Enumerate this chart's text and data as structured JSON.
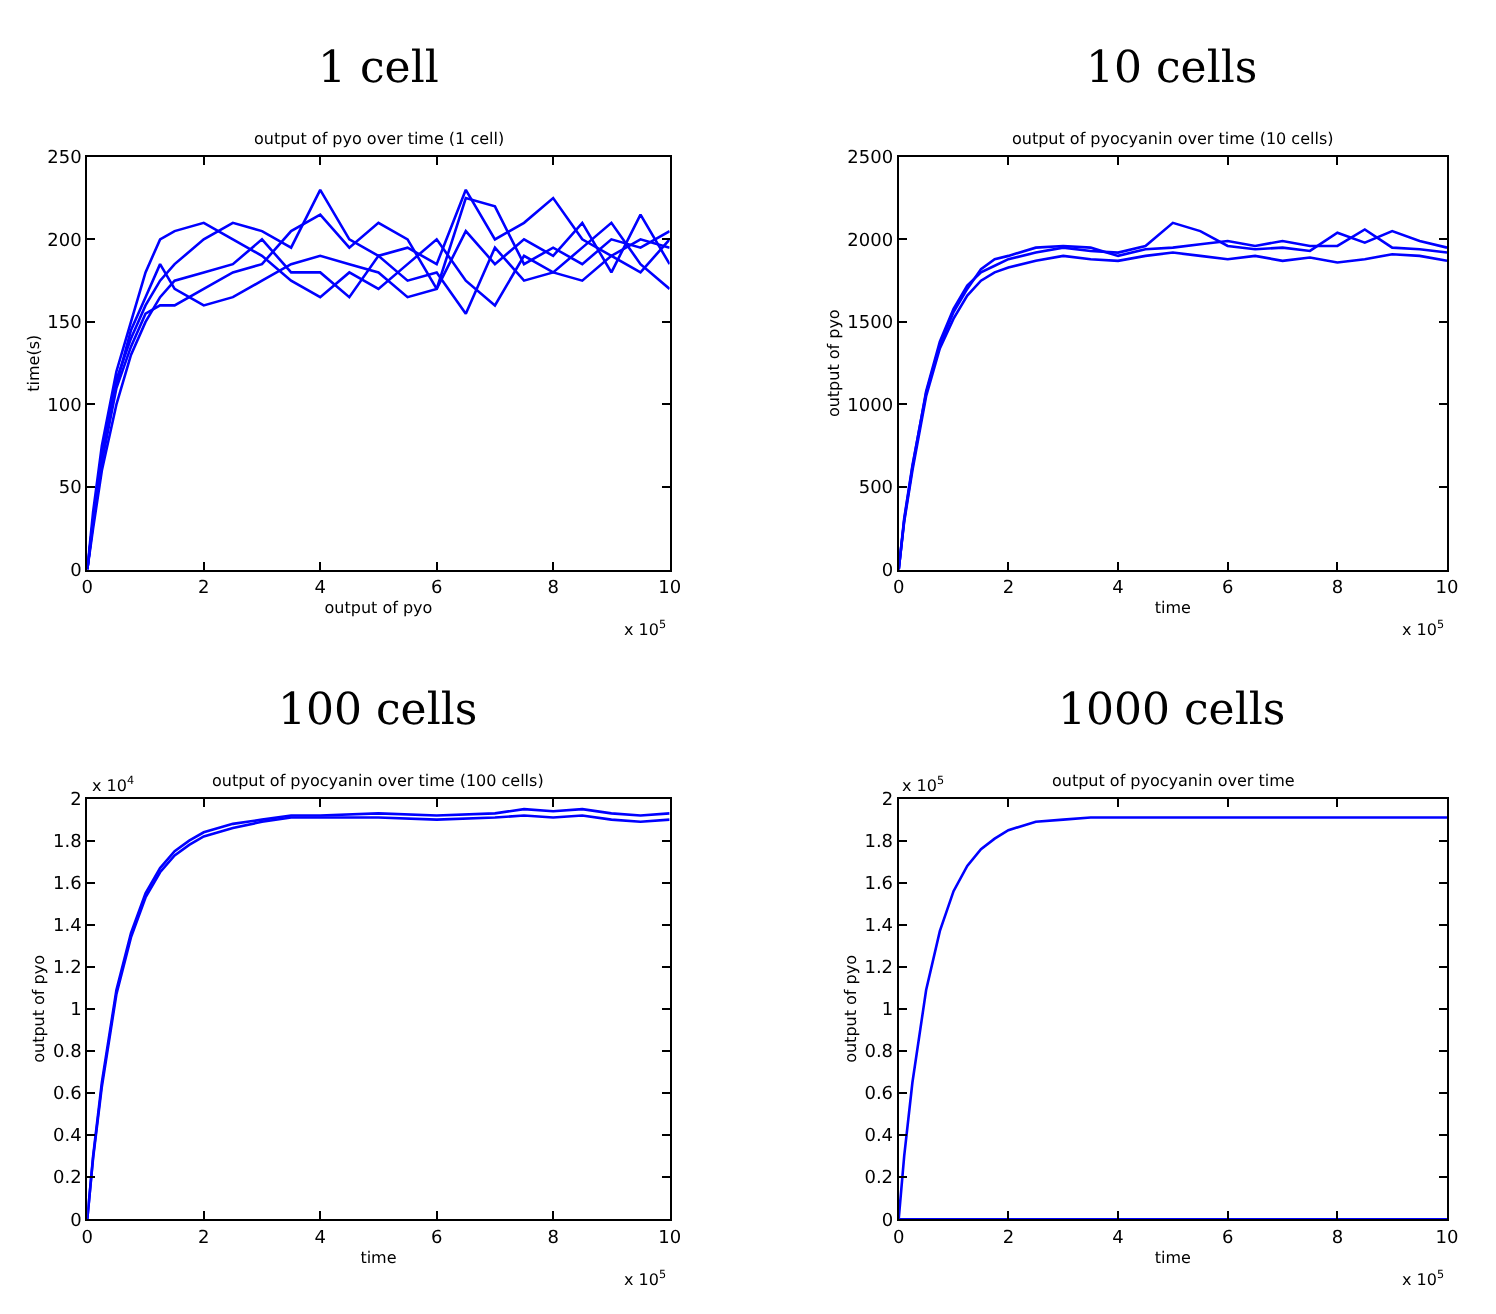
{
  "chart_data": [
    {
      "type": "line",
      "title": "1 cell",
      "subtitle": "output of pyo over time (1 cell)",
      "xlabel": "output of pyo",
      "ylabel": "time(s)",
      "annotations": [
        "x 10$^{5}$"
      ],
      "marker": "none",
      "line_style": "solid",
      "xlim": [
        0,
        10
      ],
      "xticks": [
        0,
        2,
        4,
        6,
        8,
        10
      ],
      "ylim": [
        0,
        250
      ],
      "yticks": [
        0,
        50,
        100,
        150,
        200,
        250
      ],
      "x": [
        0,
        0.1,
        0.25,
        0.5,
        0.75,
        1,
        1.25,
        1.5,
        2,
        2.5,
        3,
        3.5,
        4,
        4.5,
        5,
        5.5,
        6,
        6.5,
        7,
        7.5,
        8,
        8.5,
        9,
        9.5,
        10
      ],
      "series": [
        {
          "color": "#0000ff",
          "values": [
            0,
            30,
            70,
            115,
            140,
            160,
            175,
            185,
            200,
            210,
            205,
            195,
            230,
            200,
            190,
            195,
            185,
            230,
            200,
            210,
            225,
            200,
            190,
            200,
            195
          ]
        },
        {
          "color": "#0000ff",
          "values": [
            0,
            25,
            60,
            100,
            130,
            150,
            165,
            175,
            180,
            185,
            200,
            180,
            180,
            165,
            190,
            175,
            180,
            155,
            195,
            175,
            180,
            195,
            210,
            185,
            170
          ]
        },
        {
          "color": "#0000ff",
          "values": [
            0,
            35,
            75,
            120,
            150,
            180,
            200,
            205,
            210,
            200,
            190,
            175,
            165,
            180,
            170,
            185,
            200,
            175,
            160,
            190,
            180,
            175,
            190,
            180,
            200
          ]
        },
        {
          "color": "#0000ff",
          "values": [
            0,
            28,
            65,
            110,
            135,
            155,
            160,
            160,
            170,
            180,
            185,
            205,
            215,
            195,
            210,
            200,
            170,
            205,
            185,
            200,
            190,
            210,
            180,
            215,
            185
          ]
        },
        {
          "color": "#0000ff",
          "values": [
            0,
            30,
            70,
            112,
            145,
            165,
            185,
            170,
            160,
            165,
            175,
            185,
            190,
            185,
            180,
            165,
            170,
            225,
            220,
            185,
            195,
            185,
            200,
            195,
            205
          ]
        }
      ]
    },
    {
      "type": "line",
      "title": "10 cells",
      "subtitle": "output of pyocyanin over time (10 cells)",
      "xlabel": "time",
      "ylabel": "output of pyo",
      "annotations": [
        "x 10$^{5}$"
      ],
      "marker": "none",
      "line_style": "solid",
      "xlim": [
        0,
        10
      ],
      "xticks": [
        0,
        2,
        4,
        6,
        8,
        10
      ],
      "ylim": [
        0,
        2500
      ],
      "yticks": [
        0,
        500,
        1000,
        1500,
        2000,
        2500
      ],
      "x": [
        0,
        0.1,
        0.25,
        0.5,
        0.75,
        1,
        1.25,
        1.5,
        1.75,
        2,
        2.5,
        3,
        3.5,
        4,
        4.5,
        5,
        5.5,
        6,
        6.5,
        7,
        7.5,
        8,
        8.5,
        9,
        9.5,
        10
      ],
      "series": [
        {
          "color": "#0000ff",
          "values": [
            0,
            300,
            620,
            1080,
            1380,
            1580,
            1720,
            1800,
            1840,
            1880,
            1920,
            1950,
            1930,
            1920,
            1960,
            2100,
            2050,
            1960,
            1940,
            1950,
            1930,
            2040,
            1980,
            2050,
            1990,
            1950
          ]
        },
        {
          "color": "#0000ff",
          "values": [
            0,
            290,
            600,
            1050,
            1340,
            1520,
            1660,
            1750,
            1800,
            1830,
            1870,
            1900,
            1880,
            1870,
            1900,
            1920,
            1900,
            1880,
            1900,
            1870,
            1890,
            1860,
            1880,
            1910,
            1900,
            1870
          ]
        },
        {
          "color": "#0000ff",
          "values": [
            0,
            310,
            630,
            1070,
            1360,
            1560,
            1700,
            1820,
            1880,
            1900,
            1950,
            1960,
            1950,
            1900,
            1940,
            1950,
            1970,
            1990,
            1960,
            1990,
            1960,
            1960,
            2060,
            1950,
            1940,
            1920
          ]
        }
      ]
    },
    {
      "type": "line",
      "title": "100 cells",
      "subtitle": "output of pyocyanin over time (100 cells)",
      "xlabel": "time",
      "ylabel": "output of pyo",
      "annotations": [
        "x 10$^{4}$",
        "x 10$^{5}$"
      ],
      "marker": "none",
      "line_style": "solid",
      "xlim": [
        0,
        10
      ],
      "xticks": [
        0,
        2,
        4,
        6,
        8,
        10
      ],
      "ylim": [
        0,
        2
      ],
      "yticks": [
        0,
        0.2,
        0.4,
        0.6,
        0.8,
        1,
        1.2,
        1.4,
        1.6,
        1.8,
        2
      ],
      "x": [
        0,
        0.1,
        0.25,
        0.5,
        0.75,
        1,
        1.25,
        1.5,
        1.75,
        2,
        2.5,
        3,
        3.5,
        4,
        5,
        6,
        7,
        7.5,
        8,
        8.5,
        9,
        9.5,
        10
      ],
      "series": [
        {
          "color": "#0000ff",
          "values": [
            0,
            0.3,
            0.65,
            1.09,
            1.36,
            1.55,
            1.67,
            1.75,
            1.8,
            1.84,
            1.88,
            1.9,
            1.92,
            1.92,
            1.93,
            1.92,
            1.93,
            1.95,
            1.94,
            1.95,
            1.93,
            1.92,
            1.93
          ]
        },
        {
          "color": "#0000ff",
          "values": [
            0,
            0.29,
            0.63,
            1.07,
            1.34,
            1.53,
            1.65,
            1.73,
            1.78,
            1.82,
            1.86,
            1.89,
            1.91,
            1.91,
            1.91,
            1.9,
            1.91,
            1.92,
            1.91,
            1.92,
            1.9,
            1.89,
            1.9
          ]
        }
      ]
    },
    {
      "type": "line",
      "title": "1000 cells",
      "subtitle": "output of pyocyanin over time",
      "xlabel": "time",
      "ylabel": "output of pyo",
      "annotations": [
        "x 10$^{5}$",
        "x 10$^{5}$"
      ],
      "marker": "none",
      "line_style": "solid",
      "xlim": [
        0,
        10
      ],
      "xticks": [
        0,
        2,
        4,
        6,
        8,
        10
      ],
      "ylim": [
        0,
        2
      ],
      "yticks": [
        0,
        0.2,
        0.4,
        0.6,
        0.8,
        1,
        1.2,
        1.4,
        1.6,
        1.8,
        2
      ],
      "x": [
        0,
        0.1,
        0.25,
        0.5,
        0.75,
        1,
        1.25,
        1.5,
        1.75,
        2,
        2.5,
        3,
        3.5,
        4,
        5,
        6,
        7,
        7.5,
        8,
        8.5,
        9,
        9.5,
        10
      ],
      "series": [
        {
          "color": "#0000ff",
          "values": [
            0,
            0.3,
            0.65,
            1.09,
            1.37,
            1.56,
            1.68,
            1.76,
            1.81,
            1.85,
            1.89,
            1.9,
            1.91,
            1.91,
            1.91,
            1.91,
            1.91,
            1.91,
            1.91,
            1.91,
            1.91,
            1.91,
            1.91
          ]
        },
        {
          "color": "#0000ff",
          "x": [
            0,
            10
          ],
          "values": [
            0,
            0
          ]
        }
      ]
    }
  ]
}
